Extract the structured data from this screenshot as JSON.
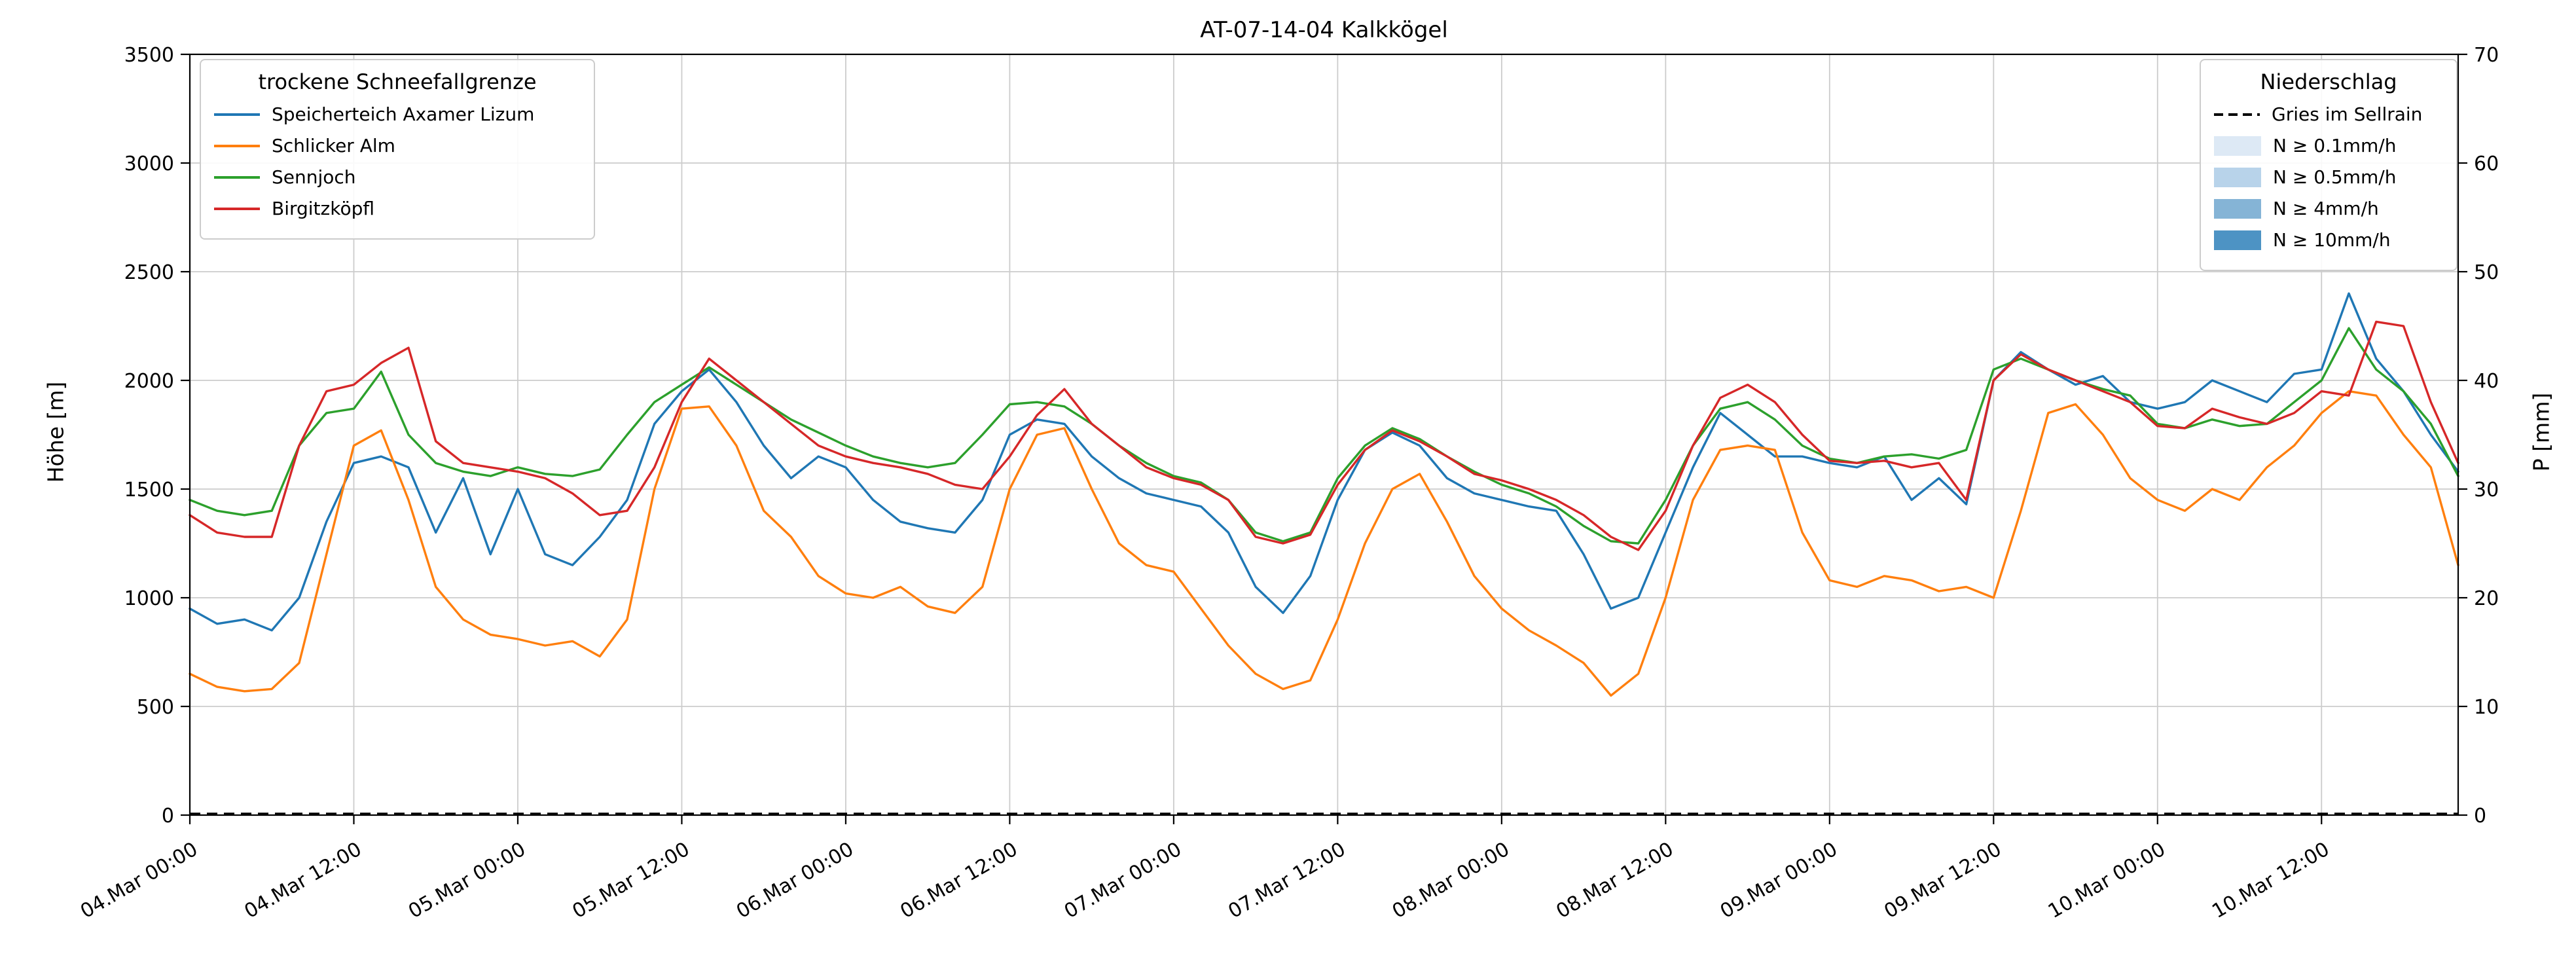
{
  "chart_data": {
    "type": "line",
    "title": "AT-07-14-04 Kalkkögel",
    "ylabel_left": "Höhe [m]",
    "ylabel_right": "P [mm]",
    "ylim_left": [
      0,
      3500
    ],
    "ylim_right": [
      0,
      70
    ],
    "yticks_left": [
      0,
      500,
      1000,
      1500,
      2000,
      2500,
      3000,
      3500
    ],
    "yticks_right": [
      0,
      10,
      20,
      30,
      40,
      50,
      60,
      70
    ],
    "grid": true,
    "legend_left_title": "trockene Schneefallgrenze",
    "legend_right_title": "Niederschlag",
    "x_hours_range": [
      0,
      166
    ],
    "xticks": [
      {
        "hour": 0,
        "label": "04.Mar 00:00"
      },
      {
        "hour": 12,
        "label": "04.Mar 12:00"
      },
      {
        "hour": 24,
        "label": "05.Mar 00:00"
      },
      {
        "hour": 36,
        "label": "05.Mar 12:00"
      },
      {
        "hour": 48,
        "label": "06.Mar 00:00"
      },
      {
        "hour": 60,
        "label": "06.Mar 12:00"
      },
      {
        "hour": 72,
        "label": "07.Mar 00:00"
      },
      {
        "hour": 84,
        "label": "07.Mar 12:00"
      },
      {
        "hour": 96,
        "label": "08.Mar 00:00"
      },
      {
        "hour": 108,
        "label": "08.Mar 12:00"
      },
      {
        "hour": 120,
        "label": "09.Mar 00:00"
      },
      {
        "hour": 132,
        "label": "09.Mar 12:00"
      },
      {
        "hour": 144,
        "label": "10.Mar 00:00"
      },
      {
        "hour": 156,
        "label": "10.Mar 12:00"
      }
    ],
    "x_hours": [
      0,
      2,
      4,
      6,
      8,
      10,
      12,
      14,
      16,
      18,
      20,
      22,
      24,
      26,
      28,
      30,
      32,
      34,
      36,
      38,
      40,
      42,
      44,
      46,
      48,
      50,
      52,
      54,
      56,
      58,
      60,
      62,
      64,
      66,
      68,
      70,
      72,
      74,
      76,
      78,
      80,
      82,
      84,
      86,
      88,
      90,
      92,
      94,
      96,
      98,
      100,
      102,
      104,
      106,
      108,
      110,
      112,
      114,
      116,
      118,
      120,
      122,
      124,
      126,
      128,
      130,
      132,
      134,
      136,
      138,
      140,
      142,
      144,
      146,
      148,
      150,
      152,
      154,
      156,
      158,
      160,
      162,
      164,
      166
    ],
    "series": [
      {
        "name": "Speicherteich Axamer Lizum",
        "color": "#1f77b4",
        "values": [
          950,
          880,
          900,
          850,
          1000,
          1350,
          1620,
          1650,
          1600,
          1300,
          1550,
          1200,
          1500,
          1200,
          1150,
          1280,
          1450,
          1800,
          1950,
          2050,
          1900,
          1700,
          1550,
          1650,
          1600,
          1450,
          1350,
          1320,
          1300,
          1450,
          1750,
          1820,
          1800,
          1650,
          1550,
          1480,
          1450,
          1420,
          1300,
          1050,
          930,
          1100,
          1450,
          1680,
          1760,
          1700,
          1550,
          1480,
          1450,
          1420,
          1400,
          1200,
          950,
          1000,
          1300,
          1600,
          1850,
          1750,
          1650,
          1650,
          1620,
          1600,
          1650,
          1450,
          1550,
          1430,
          2000,
          2130,
          2050,
          1980,
          2020,
          1900,
          1870,
          1900,
          2000,
          1950,
          1900,
          2030,
          2050,
          2400,
          2100,
          1950,
          1750,
          1580
        ]
      },
      {
        "name": "Schlicker Alm",
        "color": "#ff7f0e",
        "values": [
          650,
          590,
          570,
          580,
          700,
          1200,
          1700,
          1770,
          1450,
          1050,
          900,
          830,
          810,
          780,
          800,
          730,
          900,
          1500,
          1870,
          1880,
          1700,
          1400,
          1280,
          1100,
          1020,
          1000,
          1050,
          960,
          930,
          1050,
          1500,
          1750,
          1780,
          1500,
          1250,
          1150,
          1120,
          950,
          780,
          650,
          580,
          620,
          900,
          1250,
          1500,
          1570,
          1350,
          1100,
          950,
          850,
          780,
          700,
          550,
          650,
          1000,
          1450,
          1680,
          1700,
          1680,
          1300,
          1080,
          1050,
          1100,
          1080,
          1030,
          1050,
          1000,
          1400,
          1850,
          1890,
          1750,
          1550,
          1450,
          1400,
          1500,
          1450,
          1600,
          1700,
          1850,
          1950,
          1930,
          1750,
          1600,
          1150
        ]
      },
      {
        "name": "Sennjoch",
        "color": "#2ca02c",
        "values": [
          1450,
          1400,
          1380,
          1400,
          1700,
          1850,
          1870,
          2040,
          1750,
          1620,
          1580,
          1560,
          1600,
          1570,
          1560,
          1590,
          1750,
          1900,
          1980,
          2060,
          1980,
          1900,
          1820,
          1760,
          1700,
          1650,
          1620,
          1600,
          1620,
          1750,
          1890,
          1900,
          1880,
          1800,
          1700,
          1620,
          1560,
          1530,
          1450,
          1300,
          1260,
          1300,
          1550,
          1700,
          1780,
          1730,
          1650,
          1580,
          1520,
          1480,
          1420,
          1330,
          1260,
          1250,
          1450,
          1700,
          1870,
          1900,
          1820,
          1700,
          1640,
          1620,
          1650,
          1660,
          1640,
          1680,
          2050,
          2100,
          2050,
          2000,
          1960,
          1930,
          1800,
          1780,
          1820,
          1790,
          1800,
          1900,
          2000,
          2240,
          2050,
          1950,
          1800,
          1560
        ]
      },
      {
        "name": "Birgitzköpfl",
        "color": "#d62728",
        "values": [
          1380,
          1300,
          1280,
          1280,
          1700,
          1950,
          1980,
          2080,
          2150,
          1720,
          1620,
          1600,
          1580,
          1550,
          1480,
          1380,
          1400,
          1600,
          1900,
          2100,
          2000,
          1900,
          1800,
          1700,
          1650,
          1620,
          1600,
          1570,
          1520,
          1500,
          1650,
          1840,
          1960,
          1800,
          1700,
          1600,
          1550,
          1520,
          1450,
          1280,
          1250,
          1290,
          1520,
          1680,
          1770,
          1720,
          1650,
          1570,
          1540,
          1500,
          1450,
          1380,
          1280,
          1220,
          1400,
          1700,
          1920,
          1980,
          1900,
          1750,
          1630,
          1620,
          1630,
          1600,
          1620,
          1450,
          2000,
          2120,
          2050,
          2000,
          1950,
          1900,
          1790,
          1780,
          1870,
          1830,
          1800,
          1850,
          1950,
          1930,
          2270,
          2250,
          1900,
          1620
        ]
      }
    ],
    "precipitation": {
      "station": "Gries im Sellrain",
      "color": "#000000",
      "line_style": "dashed",
      "values_constant_mm": 0,
      "legend_levels": [
        {
          "label": "N ≥ 0.1mm/h",
          "color": "#dde9f5"
        },
        {
          "label": "N ≥ 0.5mm/h",
          "color": "#b8d3ea"
        },
        {
          "label": "N ≥ 4mm/h",
          "color": "#85b4d6"
        },
        {
          "label": "N ≥ 10mm/h",
          "color": "#4d93c4"
        }
      ]
    }
  }
}
